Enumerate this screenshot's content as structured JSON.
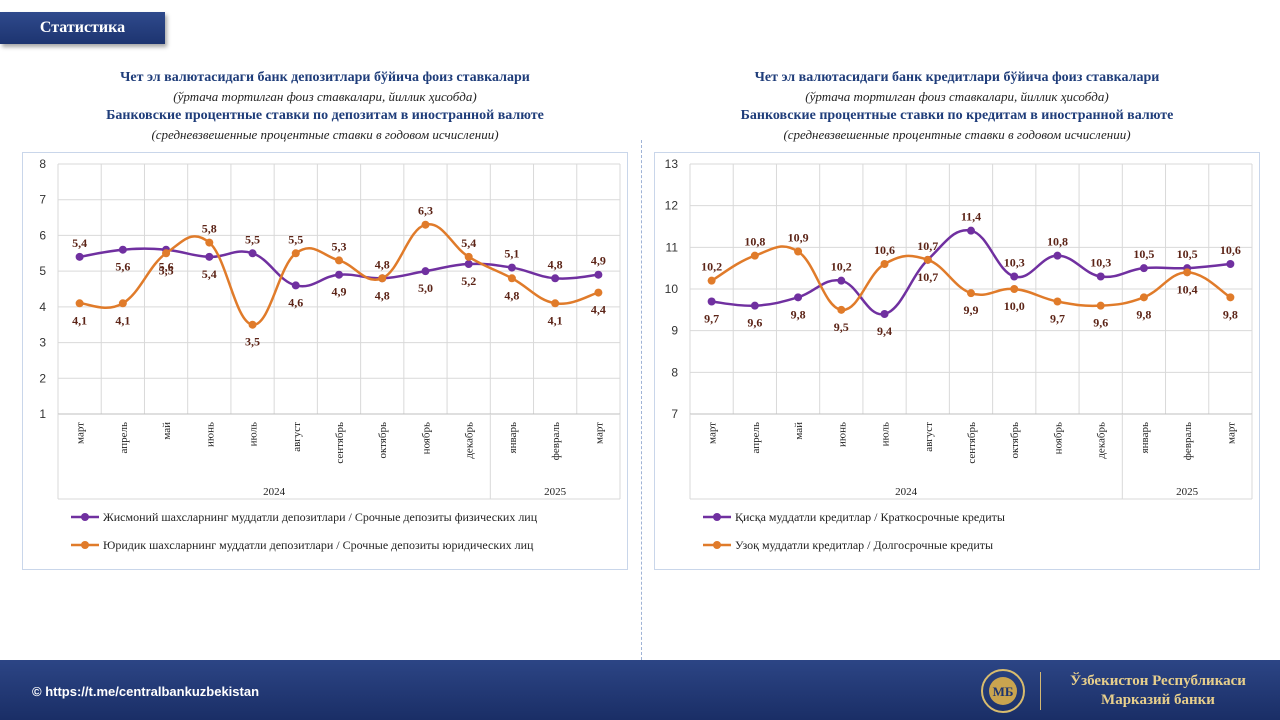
{
  "header": {
    "tab_label": "Статистика"
  },
  "left_titles": {
    "uz_title": "Чет эл валютасидаги банк депозитлари бўйича фоиз ставкалари",
    "uz_subtitle": "(ўртача тортилган фоиз ставкалари, йиллик ҳисобда)",
    "ru_title": "Банковские процентные ставки по депозитам в иностранной валюте",
    "ru_subtitle": "(средневзвешенные процентные ставки в годовом исчислении)"
  },
  "right_titles": {
    "uz_title": "Чет эл валютасидаги банк кредитлари бўйича фоиз ставкалари",
    "uz_subtitle": "(ўртача тортилган фоиз ставкалари, йиллик ҳисобда)",
    "ru_title": "Банковские процентные ставки по кредитам в иностранной валюте",
    "ru_subtitle": "(средневзвешенные процентные ставки в годовом исчислении)"
  },
  "chart_data": [
    {
      "type": "line",
      "categories": [
        "март",
        "апрель",
        "май",
        "июнь",
        "июль",
        "август",
        "сентябрь",
        "октябрь",
        "ноябрь",
        "декабрь",
        "январь",
        "февраль",
        "март"
      ],
      "year_groups": [
        {
          "label": "2024",
          "count": 10
        },
        {
          "label": "2025",
          "count": 3
        }
      ],
      "ylim": [
        1,
        8
      ],
      "yticks": [
        1,
        2,
        3,
        4,
        5,
        6,
        7,
        8
      ],
      "grid": true,
      "legend_position": "bottom",
      "series": [
        {
          "name": "Жисмоний шахсларнинг  муддатли  депозитлари / Срочные депозиты физических лиц",
          "color": "#7030a0",
          "values": [
            5.4,
            5.6,
            5.6,
            5.4,
            5.5,
            4.6,
            4.9,
            4.8,
            5.0,
            5.2,
            5.1,
            4.8,
            4.9
          ],
          "labels": [
            "5,4",
            "5,6",
            "5,6",
            "5,4",
            "5,5",
            "4,6",
            "4,9",
            "4,8",
            "5,0",
            "5,2",
            "5,1",
            "4,8",
            "4,9"
          ]
        },
        {
          "name": "Юридик  шахсларнинг  муддатли  депозитлари / Срочные депозиты юридических  лиц",
          "color": "#e07b2a",
          "values": [
            4.1,
            4.1,
            5.5,
            5.8,
            3.5,
            5.5,
            5.3,
            4.8,
            6.3,
            5.4,
            4.8,
            4.1,
            4.4
          ],
          "labels": [
            "4,1",
            "4,1",
            "5,5",
            "5,8",
            "3,5",
            "5,5",
            "5,3",
            "4,8",
            "6,3",
            "5,4",
            "4,8",
            "4,1",
            "4,4"
          ]
        }
      ]
    },
    {
      "type": "line",
      "categories": [
        "март",
        "апрель",
        "май",
        "июнь",
        "июль",
        "август",
        "сентябрь",
        "октябрь",
        "ноябрь",
        "декабрь",
        "январь",
        "февраль",
        "март"
      ],
      "year_groups": [
        {
          "label": "2024",
          "count": 10
        },
        {
          "label": "2025",
          "count": 3
        }
      ],
      "ylim": [
        7,
        13
      ],
      "yticks": [
        7,
        8,
        9,
        10,
        11,
        12,
        13
      ],
      "grid": true,
      "legend_position": "bottom",
      "series": [
        {
          "name": "Қисқа  муддатли  кредитлар  / Краткосрочные кредиты",
          "color": "#7030a0",
          "values": [
            9.7,
            9.6,
            9.8,
            10.2,
            9.4,
            10.7,
            11.4,
            10.3,
            10.8,
            10.3,
            10.5,
            10.5,
            10.6
          ],
          "labels": [
            "9,7",
            "9,6",
            "9,8",
            "10,2",
            "9,4",
            "10,7",
            "11,4",
            "10,3",
            "10,8",
            "10,3",
            "10,5",
            "10,5",
            "10,6"
          ]
        },
        {
          "name": "Узоқ  муддатли  кредитлар  / Долгосрочные кредиты",
          "color": "#e07b2a",
          "values": [
            10.2,
            10.8,
            10.9,
            9.5,
            10.6,
            10.7,
            9.9,
            10.0,
            9.7,
            9.6,
            9.8,
            10.4,
            9.8
          ],
          "labels": [
            "10,2",
            "10,8",
            "10,9",
            "9,5",
            "10,6",
            "10,7",
            "9,9",
            "10,0",
            "9,7",
            "9,6",
            "9,8",
            "10,4",
            "9,8"
          ]
        }
      ]
    }
  ],
  "footer": {
    "link": "© https://t.me/centralbankuzbekistan",
    "bank_name_line1": "Ўзбекистон Республикаси",
    "bank_name_line2": "Марказий банки",
    "emblem_text": "МБ",
    "emblem_ring_text": "ЎЗБЕКИСТОН РЕСПУБЛИКАСИ",
    "colors": {
      "footer_bg": "#1f3470",
      "gold": "#e7cf8c"
    }
  }
}
